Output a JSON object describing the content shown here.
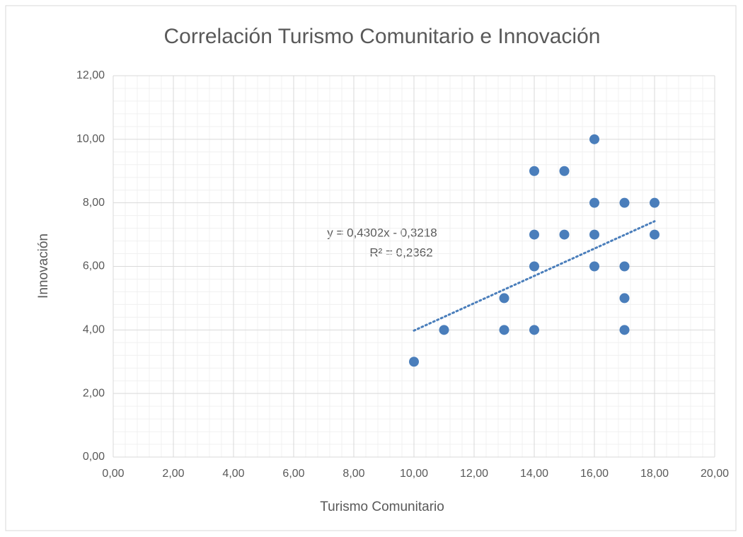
{
  "chart_data": {
    "type": "scatter",
    "title": "Correlación Turismo Comunitario e Innovación",
    "x_label": "Turismo Comunitario",
    "y_label": "Innovación",
    "x": [
      10,
      11,
      13,
      13,
      14,
      14,
      14,
      14,
      15,
      15,
      16,
      16,
      16,
      16,
      17,
      17,
      17,
      17,
      18,
      18
    ],
    "values": [
      3,
      4,
      4,
      5,
      4,
      6,
      7,
      9,
      7,
      9,
      6,
      7,
      8,
      10,
      4,
      5,
      6,
      8,
      7,
      8
    ],
    "color": "#4a7ebb",
    "trendline": {
      "x": [
        10,
        18
      ],
      "y": [
        3.98,
        7.42
      ],
      "color": "#4a7ebb"
    },
    "annotations": [
      "y = 0,4302x - 0,3218",
      "R² = 0,2362"
    ],
    "xlim": [
      0,
      20
    ],
    "xticks": [
      {
        "value": 0,
        "label": "0,00"
      },
      {
        "value": 2,
        "label": "2,00"
      },
      {
        "value": 4,
        "label": "4,00"
      },
      {
        "value": 6,
        "label": "6,00"
      },
      {
        "value": 8,
        "label": "8,00"
      },
      {
        "value": 10,
        "label": "10,00"
      },
      {
        "value": 12,
        "label": "12,00"
      },
      {
        "value": 14,
        "label": "14,00"
      },
      {
        "value": 16,
        "label": "16,00"
      },
      {
        "value": 18,
        "label": "18,00"
      },
      {
        "value": 20,
        "label": "20,00"
      }
    ],
    "ylim": [
      0,
      12
    ],
    "yticks": [
      {
        "value": 0,
        "label": "0,00"
      },
      {
        "value": 2,
        "label": "2,00"
      },
      {
        "value": 4,
        "label": "4,00"
      },
      {
        "value": 6,
        "label": "6,00"
      },
      {
        "value": 8,
        "label": "8,00"
      },
      {
        "value": 10,
        "label": "10,00"
      },
      {
        "value": 12,
        "label": "12,00"
      }
    ],
    "grid": true,
    "minor_grid": true,
    "minor_divisions": 5
  }
}
